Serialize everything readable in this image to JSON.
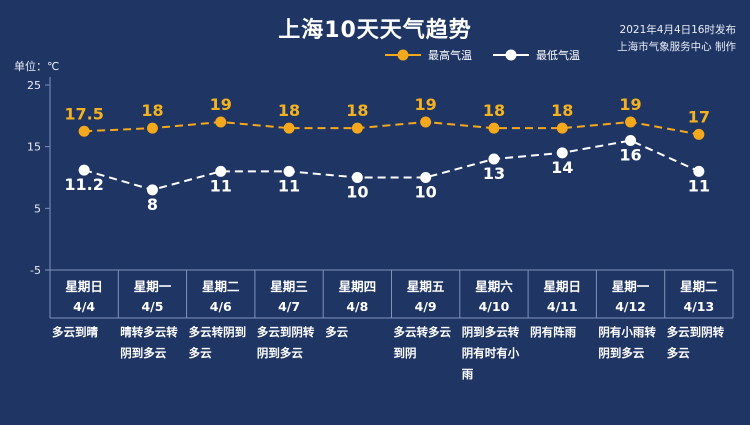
{
  "header": {
    "title": "上海10天天气趋势",
    "publish_time": "2021年4月4日16时发布",
    "publisher": "上海市气象服务中心 制作",
    "unit_label": "单位：℃"
  },
  "colors": {
    "background": "#1f3564",
    "high_series": "#f5a81c",
    "low_series": "#ffffff",
    "grid": "#7f93bb"
  },
  "chart_data": {
    "type": "line",
    "x": [
      "4/4",
      "4/5",
      "4/6",
      "4/7",
      "4/8",
      "4/9",
      "4/10",
      "4/11",
      "4/12",
      "4/13"
    ],
    "weekdays": [
      "星期日",
      "星期一",
      "星期二",
      "星期三",
      "星期四",
      "星期五",
      "星期六",
      "星期日",
      "星期一",
      "星期二"
    ],
    "weather": [
      "多云到晴",
      "晴转多云转阴到多云",
      "多云转阴到多云",
      "多云到阴转阴到多云",
      "多云",
      "多云转多云到阴",
      "阴到多云转阴有时有小雨",
      "阴有阵雨",
      "阴有小雨转阴到多云",
      "多云到阴转多云"
    ],
    "series": [
      {
        "name": "最高气温",
        "values": [
          17.5,
          18,
          19,
          18,
          18,
          19,
          18,
          18,
          19,
          17
        ],
        "labels": [
          "17.5",
          "18",
          "19",
          "18",
          "18",
          "19",
          "18",
          "18",
          "19",
          "17"
        ]
      },
      {
        "name": "最低气温",
        "values": [
          11.2,
          8,
          11,
          11,
          10,
          10,
          13,
          14,
          16,
          11
        ],
        "labels": [
          "11.2",
          "8",
          "11",
          "11",
          "10",
          "10",
          "13",
          "14",
          "16",
          "11"
        ]
      }
    ],
    "yticks": [
      "25",
      "15",
      "5",
      "-5"
    ],
    "ylim": [
      -5,
      25
    ],
    "grid": false,
    "legend_position": "top-right",
    "line_style": "dashed"
  }
}
